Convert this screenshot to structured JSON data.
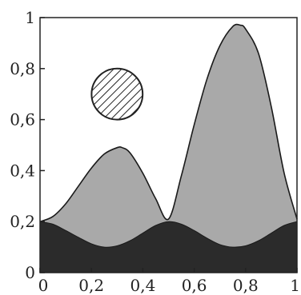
{
  "chart_data": {
    "type": "area",
    "title": "",
    "xlabel": "",
    "ylabel": "",
    "xlim": [
      0,
      1
    ],
    "ylim": [
      0,
      1
    ],
    "grid": false,
    "legend": "none",
    "x_ticks": [
      {
        "value": 0,
        "label": "0"
      },
      {
        "value": 0.2,
        "label": "0,2"
      },
      {
        "value": 0.4,
        "label": "0,4"
      },
      {
        "value": 0.6,
        "label": "0,6"
      },
      {
        "value": 0.8,
        "label": "0,8"
      },
      {
        "value": 1,
        "label": "1"
      }
    ],
    "y_ticks": [
      {
        "value": 0,
        "label": "0"
      },
      {
        "value": 0.2,
        "label": "0,2"
      },
      {
        "value": 0.4,
        "label": "0,4"
      },
      {
        "value": 0.6,
        "label": "0,6"
      },
      {
        "value": 0.8,
        "label": "0,8"
      },
      {
        "value": 1,
        "label": "1"
      }
    ],
    "series": [
      {
        "role": "upper-envelope",
        "color": "#a9a9a9",
        "x": [
          0,
          0.05,
          0.1,
          0.15,
          0.2,
          0.25,
          0.3,
          0.32,
          0.35,
          0.4,
          0.45,
          0.5,
          0.55,
          0.6,
          0.65,
          0.7,
          0.75,
          0.78,
          0.8,
          0.85,
          0.9,
          0.95,
          1
        ],
        "y": [
          0.2,
          0.22,
          0.27,
          0.34,
          0.41,
          0.465,
          0.49,
          0.49,
          0.47,
          0.39,
          0.29,
          0.21,
          0.38,
          0.58,
          0.76,
          0.89,
          0.965,
          0.97,
          0.955,
          0.86,
          0.65,
          0.39,
          0.21
        ]
      },
      {
        "role": "lower-band",
        "color": "#2b2b2b",
        "x": [
          0,
          0.05,
          0.1,
          0.15,
          0.2,
          0.25,
          0.3,
          0.35,
          0.4,
          0.45,
          0.5,
          0.55,
          0.6,
          0.65,
          0.7,
          0.75,
          0.8,
          0.85,
          0.9,
          0.95,
          1
        ],
        "y": [
          0.2,
          0.19,
          0.165,
          0.138,
          0.113,
          0.1,
          0.105,
          0.125,
          0.155,
          0.185,
          0.2,
          0.19,
          0.165,
          0.135,
          0.11,
          0.1,
          0.105,
          0.125,
          0.155,
          0.185,
          0.2
        ]
      }
    ],
    "annotations": [
      {
        "type": "hatched-circle",
        "cx": 0.3,
        "cy": 0.7,
        "r": 0.1,
        "stroke": "#222222"
      }
    ],
    "colors": {
      "upper_fill": "#a9a9a9",
      "lower_fill": "#2b2b2b",
      "axis": "#222222",
      "background": "#ffffff"
    }
  }
}
